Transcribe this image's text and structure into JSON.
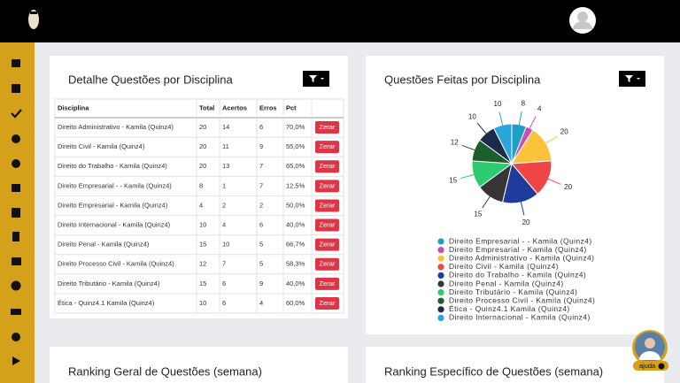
{
  "table": {
    "title": "Detalhe Questões por Disciplina",
    "columns": [
      "Disciplina",
      "Total",
      "Acertos",
      "Erros",
      "Pct"
    ],
    "rows": [
      [
        "Direito Administrativo - Kamila (Quinz4)",
        "20",
        "14",
        "6",
        "70,0%"
      ],
      [
        "Direito Civil - Kamila (Quinz4)",
        "20",
        "11",
        "9",
        "55,0%"
      ],
      [
        "Direito do Trabalho - Kamila (Quinz4)",
        "20",
        "13",
        "7",
        "65,0%"
      ],
      [
        "Direito Empresarial - - Kamila (Quinz4)",
        "8",
        "1",
        "7",
        "12,5%"
      ],
      [
        "Direito Empresarial - Kamila (Quinz4)",
        "4",
        "2",
        "2",
        "50,0%"
      ],
      [
        "Direito Internacional - Kamila (Quinz4)",
        "10",
        "4",
        "6",
        "40,0%"
      ],
      [
        "Direito Penal - Kamila (Quinz4)",
        "15",
        "10",
        "5",
        "66,7%"
      ],
      [
        "Direito Processo Civil - Kamila (Quinz4)",
        "12",
        "7",
        "5",
        "58,3%"
      ],
      [
        "Direito Tributário - Kamila (Quinz4)",
        "15",
        "6",
        "9",
        "40,0%"
      ],
      [
        "Ética - Quinz4.1 Kamila (Quinz4)",
        "10",
        "6",
        "4",
        "60,0%"
      ]
    ],
    "action_label": "Zerar"
  },
  "chart_data": {
    "type": "pie",
    "title": "Questões Feitas por Disciplina",
    "categories": [
      "Direito Empresarial - - Kamila (Quinz4)",
      "Direito Empresarial - Kamila (Quinz4)",
      "Direito Administrativo - Kamila (Quinz4)",
      "Direito Civil - Kamila (Quinz4)",
      "Direito do Trabalho - Kamila (Quinz4)",
      "Direito Penal - Kamila (Quinz4)",
      "Direito Tributário - Kamila (Quinz4)",
      "Direito Processo Civil - Kamila (Quinz4)",
      "Ética - Quinz4.1 Kamila (Quinz4)",
      "Direito Internacional - Kamila (Quinz4)"
    ],
    "values": [
      8,
      4,
      20,
      20,
      20,
      15,
      15,
      12,
      10,
      10
    ],
    "colors": [
      "#1f9fc4",
      "#c94fb5",
      "#f8c23a",
      "#ee4545",
      "#1d3c9c",
      "#353535",
      "#2ecc71",
      "#1d5e2c",
      "#1b2b4c",
      "#2aa6db"
    ]
  },
  "ranking_general": {
    "title": "Ranking Geral de Questões (semana)"
  },
  "ranking_specific": {
    "title": "Ranking Específico de Questões (semana)"
  },
  "help": {
    "label": "ajuda"
  }
}
